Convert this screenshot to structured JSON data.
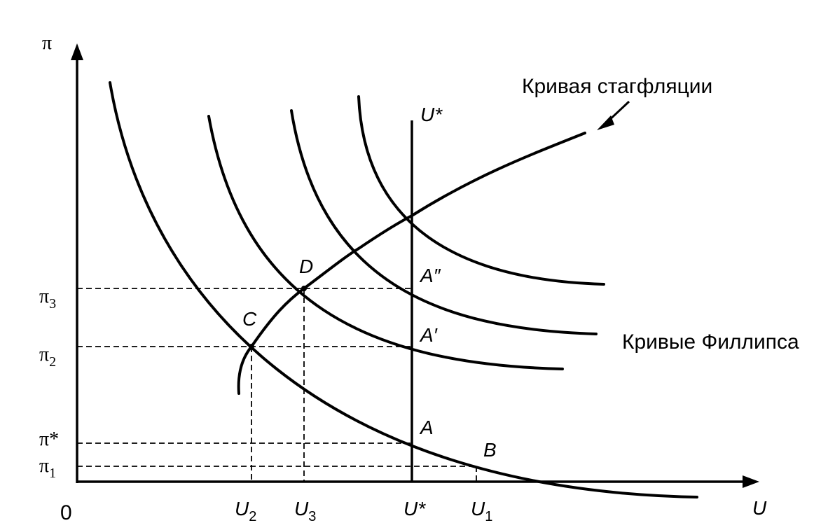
{
  "axes": {
    "y_label": "π",
    "x_label": "U",
    "origin": "0"
  },
  "y_ticks": [
    {
      "base": "π",
      "sub": "3"
    },
    {
      "base": "π",
      "sub": "2"
    },
    {
      "base": "π*",
      "sub": ""
    },
    {
      "base": "π",
      "sub": "1"
    }
  ],
  "x_ticks": [
    {
      "base": "U",
      "sub": "2"
    },
    {
      "base": "U",
      "sub": "3"
    },
    {
      "base": "U*",
      "sub": ""
    },
    {
      "base": "U",
      "sub": "1"
    }
  ],
  "vertical_line_label": "U*",
  "points": {
    "A": "A",
    "A1": "A′",
    "A2": "A″",
    "B": "B",
    "C": "C",
    "D": "D"
  },
  "labels": {
    "stagflation_curve": "Кривая стагфляции",
    "phillips_curves": "Кривые Филлипса"
  }
}
